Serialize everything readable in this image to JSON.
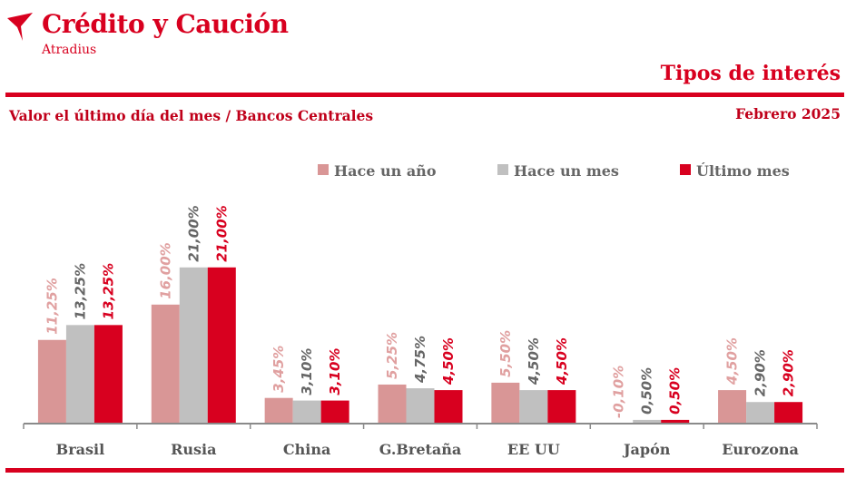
{
  "brand": {
    "name": "Crédito y Caución",
    "sub": "Atradius",
    "logo_icon": "crescent-swoosh-icon",
    "color": "#d8001f"
  },
  "header": {
    "title": "Tipos de interés"
  },
  "chart_header": {
    "subtitle": "Valor el último día del mes / Bancos Centrales",
    "period": "Febrero 2025"
  },
  "chart_data": {
    "type": "bar",
    "categories": [
      "Brasil",
      "Rusia",
      "China",
      "G.Bretaña",
      "EE UU",
      "Japón",
      "Eurozona"
    ],
    "series": [
      {
        "name": "Hace un año",
        "values": [
          11.25,
          16.0,
          3.45,
          5.25,
          5.5,
          -0.1,
          4.5
        ],
        "labels": [
          "11,25%",
          "16,00%",
          "3,45%",
          "5,25%",
          "5,50%",
          "-0,10%",
          "4,50%"
        ],
        "color": "#d99696",
        "label_color": "#e0a0a0"
      },
      {
        "name": "Hace un mes",
        "values": [
          13.25,
          21.0,
          3.1,
          4.75,
          4.5,
          0.5,
          2.9
        ],
        "labels": [
          "13,25%",
          "21,00%",
          "3,10%",
          "4,75%",
          "4,50%",
          "0,50%",
          "2,90%"
        ],
        "color": "#c0c0c0",
        "label_color": "#666666"
      },
      {
        "name": "Último mes",
        "values": [
          13.25,
          21.0,
          3.1,
          4.5,
          4.5,
          0.5,
          2.9
        ],
        "labels": [
          "13,25%",
          "21,00%",
          "3,10%",
          "4,50%",
          "4,50%",
          "0,50%",
          "2,90%"
        ],
        "color": "#d8001f",
        "label_color": "#d8001f"
      }
    ],
    "legend_position": "top-right",
    "grid": false
  }
}
